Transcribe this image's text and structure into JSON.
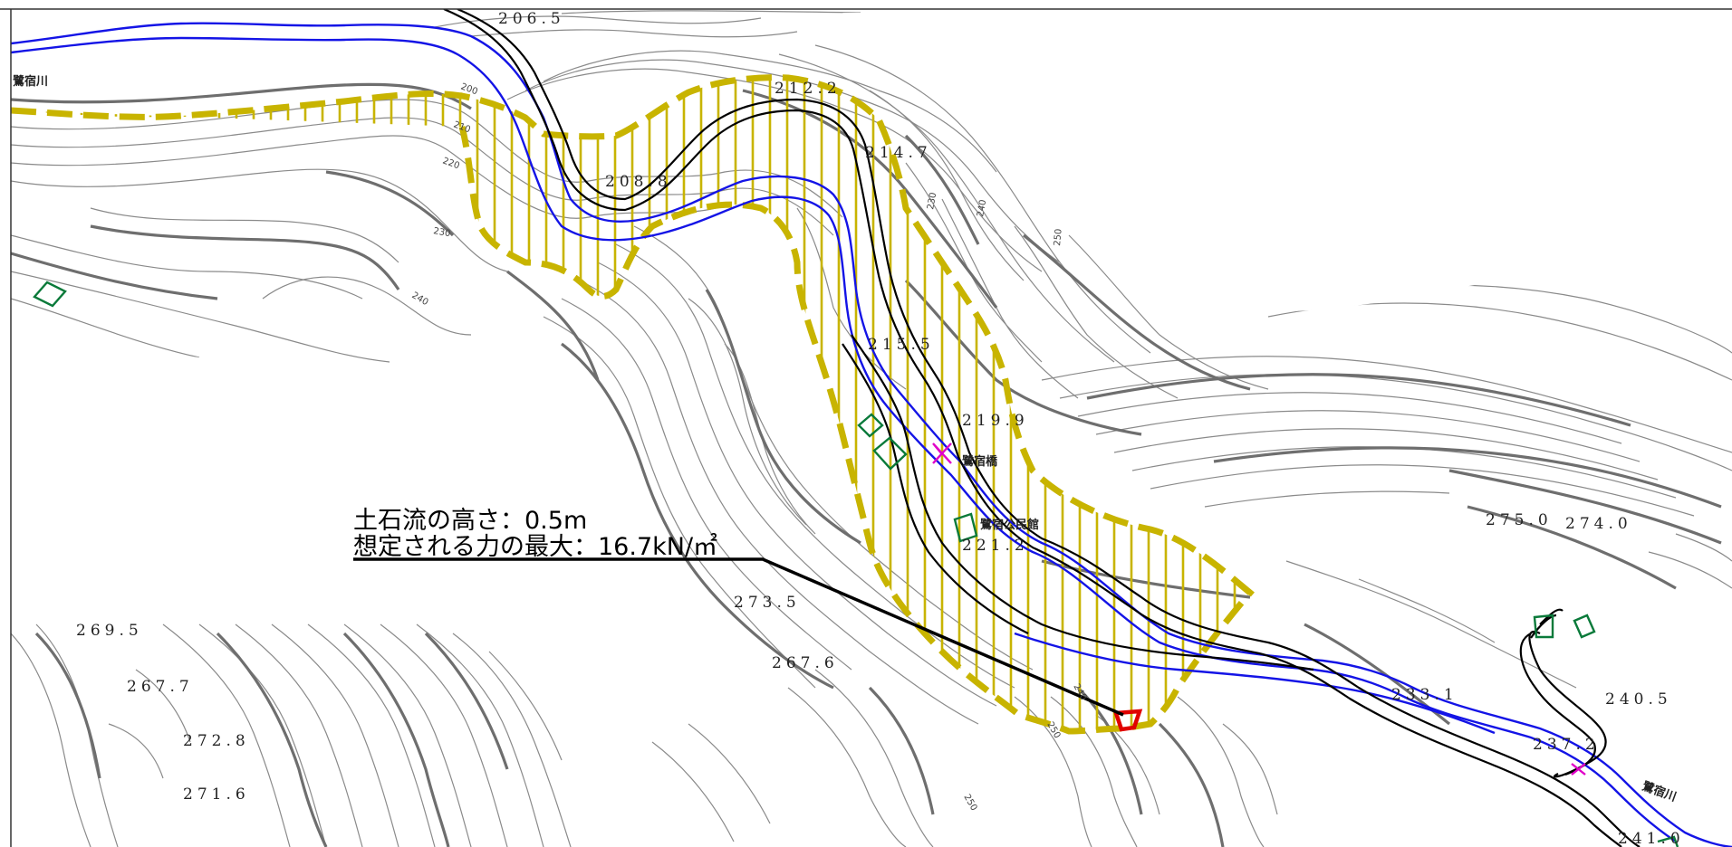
{
  "annotation": {
    "line1": "土石流の高さ：0.5m",
    "line2": "想定される力の最大：16.7kN/㎡"
  },
  "elevations": [
    "206.5",
    "212.2",
    "214.7",
    "208.8",
    "215.5",
    "219.9",
    "221.2",
    "275.0",
    "274.0",
    "273.5",
    "269.5",
    "267.7",
    "267.6",
    "272.8",
    "271.6",
    "233.1",
    "240.5",
    "237.2",
    "241.0"
  ],
  "place_labels": {
    "river_west": "鷺宿川",
    "river_east": "鷺宿川",
    "facility": "鷺宿公民館",
    "bridge": "鷺宿橋"
  },
  "contour_labels": [
    "200",
    "210",
    "220",
    "230",
    "240",
    "230",
    "240",
    "250",
    "250",
    "240",
    "250"
  ],
  "colors": {
    "hazard_zone": "#c8b400",
    "river": "#1010e0",
    "road": "#000000",
    "contour": "#7a7a7a",
    "building": "#0a7a3a",
    "bridge": "#e000c8",
    "target": "#e00000"
  }
}
